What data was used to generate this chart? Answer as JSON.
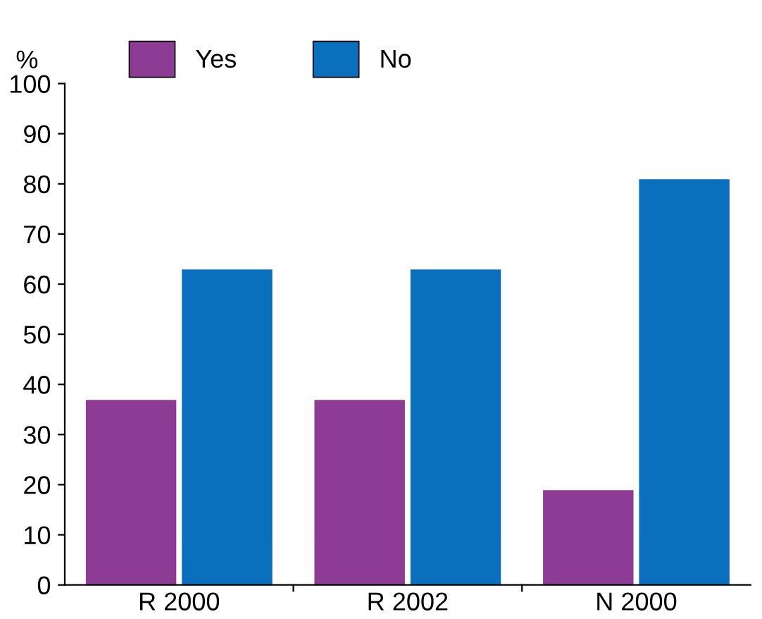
{
  "chart_data": {
    "type": "bar",
    "ylabel": "%",
    "categories": [
      "R 2000",
      "R 2002",
      "N 2000"
    ],
    "series": [
      {
        "name": "Yes",
        "color": "#8e3b96",
        "values": [
          37,
          37,
          19
        ]
      },
      {
        "name": "No",
        "color": "#0a6fbd",
        "values": [
          63,
          63,
          81
        ]
      }
    ],
    "ylim": [
      0,
      100
    ],
    "yticks": [
      0,
      10,
      20,
      30,
      40,
      50,
      60,
      70,
      80,
      90,
      100
    ],
    "grid": false,
    "legend": "top"
  }
}
